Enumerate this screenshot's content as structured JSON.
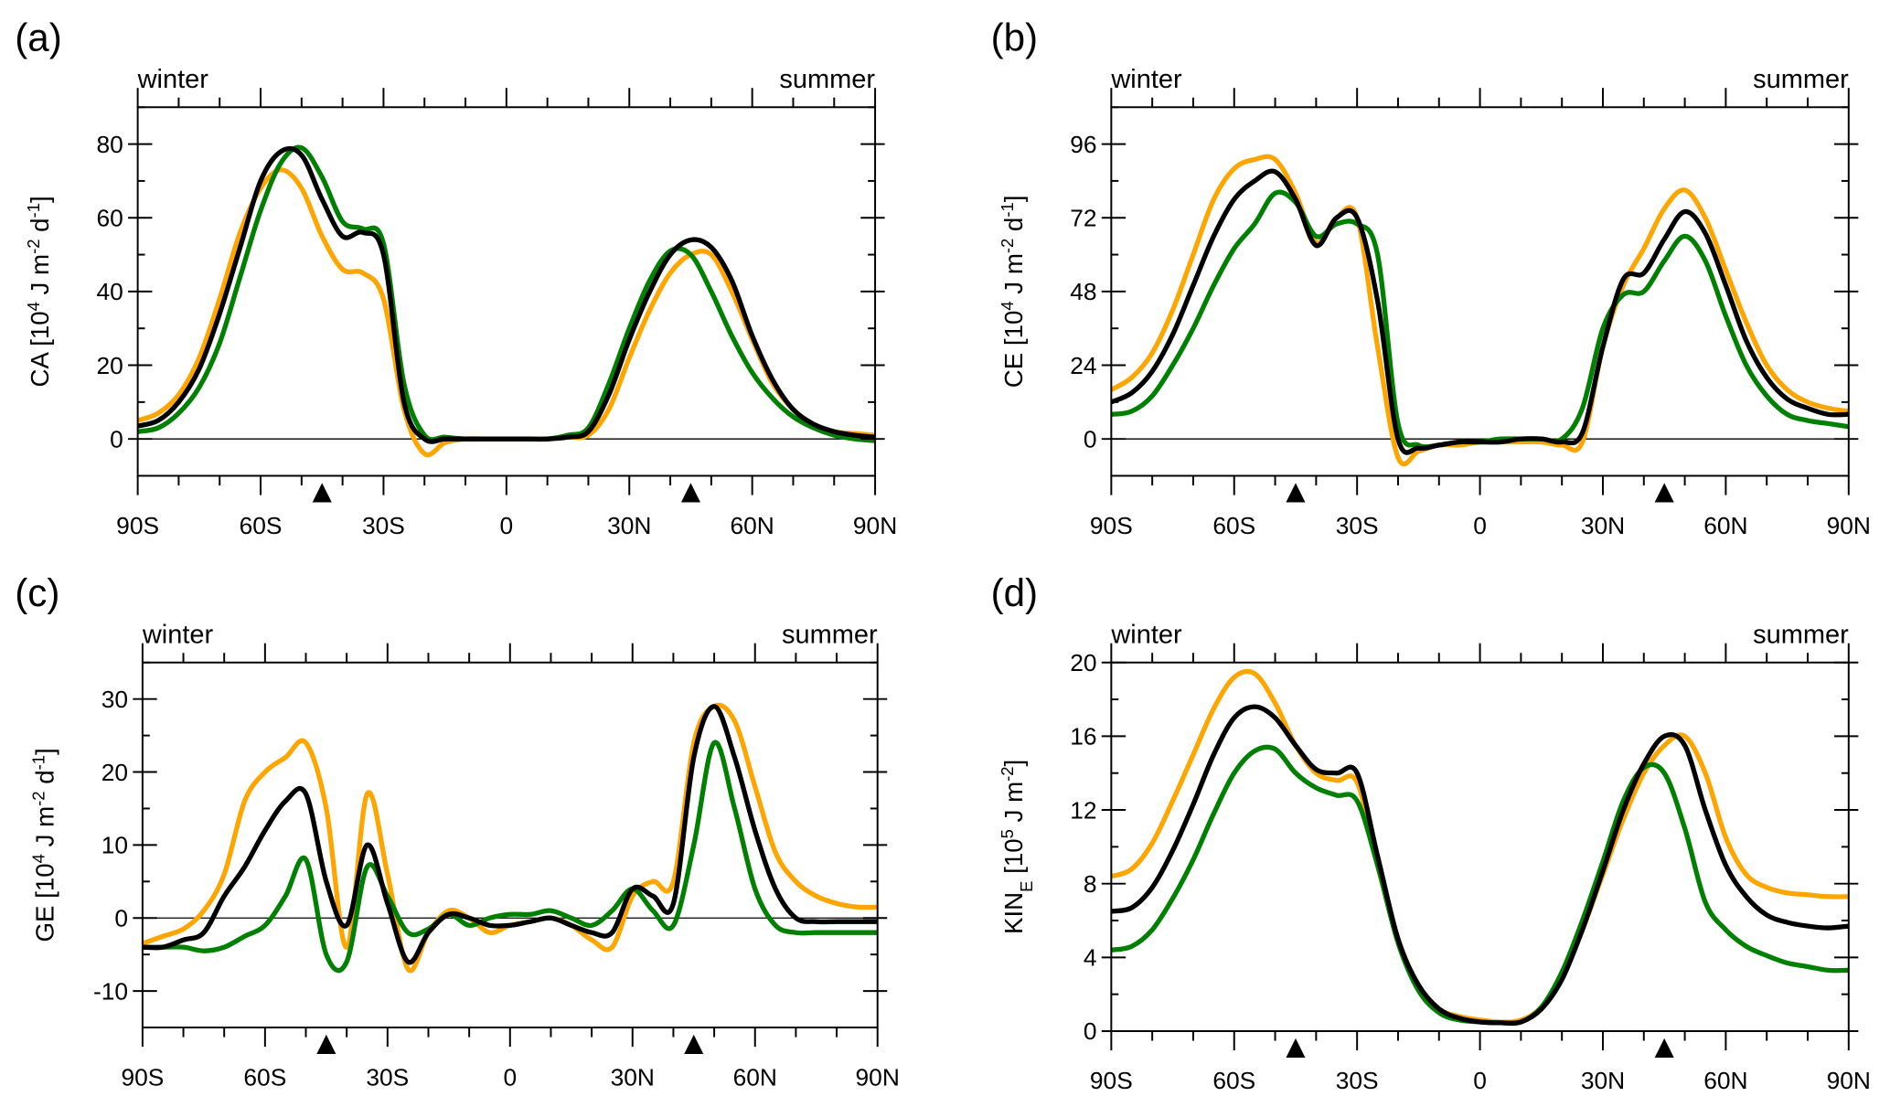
{
  "chart_data": [
    {
      "type": "line",
      "panel_label": "(a)",
      "top_left_label": "winter",
      "top_right_label": "summer",
      "ylabel": [
        {
          "t": "CA [10"
        },
        {
          "t": "4",
          "s": "sup"
        },
        {
          "t": " J m"
        },
        {
          "t": "-2",
          "s": "sup"
        },
        {
          "t": " d"
        },
        {
          "t": "-1",
          "s": "sup"
        },
        {
          "t": "]"
        }
      ],
      "xlim": [
        -90,
        90
      ],
      "ylim": [
        -10,
        90
      ],
      "yticks": [
        0,
        20,
        40,
        60,
        80
      ],
      "yticklabels": [
        "0",
        "20",
        "40",
        "60",
        "80"
      ],
      "yminor": 10,
      "xticks": [
        -90,
        -60,
        -30,
        0,
        30,
        60,
        90
      ],
      "xticklabels": [
        "90S",
        "60S",
        "30S",
        "0",
        "30N",
        "60N",
        "90N"
      ],
      "markers": [
        -45,
        45
      ],
      "zero_line": true,
      "x": [
        -90,
        -85,
        -80,
        -75,
        -70,
        -65,
        -60,
        -55,
        -50,
        -45,
        -40,
        -35,
        -30,
        -25,
        -20,
        -15,
        -10,
        -5,
        0,
        5,
        10,
        15,
        20,
        25,
        30,
        35,
        40,
        45,
        50,
        55,
        60,
        65,
        70,
        75,
        80,
        85,
        90
      ],
      "series": [
        {
          "name": "orange",
          "color": "#FFA500",
          "values": [
            5,
            7,
            12,
            22,
            38,
            56,
            68,
            73,
            68,
            55,
            46,
            45,
            38,
            8,
            -4,
            -1,
            0,
            0,
            0,
            0,
            0,
            0.5,
            1,
            8,
            22,
            35,
            45,
            50,
            50,
            40,
            27,
            15,
            8,
            4,
            2,
            1.5,
            1
          ]
        },
        {
          "name": "green",
          "color": "#008000",
          "values": [
            2,
            3,
            7,
            14,
            26,
            44,
            62,
            75,
            79,
            71,
            59,
            57,
            53,
            15,
            1,
            0.5,
            0,
            0,
            0,
            0,
            0,
            1,
            3,
            15,
            30,
            43,
            51,
            50,
            40,
            28,
            18,
            11,
            6,
            3,
            1,
            0,
            -0.5
          ]
        },
        {
          "name": "black",
          "color": "#000000",
          "values": [
            3.5,
            5,
            10,
            19,
            34,
            52,
            70,
            78,
            77,
            65,
            55,
            56,
            50,
            10,
            0,
            0,
            0,
            0,
            0,
            0,
            0,
            0.5,
            2,
            12,
            27,
            40,
            50,
            54,
            52,
            43,
            28,
            16,
            8,
            4,
            2,
            1,
            0.5
          ]
        }
      ]
    },
    {
      "type": "line",
      "panel_label": "(b)",
      "top_left_label": "winter",
      "top_right_label": "summer",
      "ylabel": [
        {
          "t": "CE [10"
        },
        {
          "t": "4",
          "s": "sup"
        },
        {
          "t": " J m"
        },
        {
          "t": "-2",
          "s": "sup"
        },
        {
          "t": " d"
        },
        {
          "t": "-1",
          "s": "sup"
        },
        {
          "t": "]"
        }
      ],
      "xlim": [
        -90,
        90
      ],
      "ylim": [
        -12,
        108
      ],
      "yticks": [
        0,
        24,
        48,
        72,
        96
      ],
      "yticklabels": [
        "0",
        "24",
        "48",
        "72",
        "96"
      ],
      "yminor": 12,
      "xticks": [
        -90,
        -60,
        -30,
        0,
        30,
        60,
        90
      ],
      "xticklabels": [
        "90S",
        "60S",
        "30S",
        "0",
        "30N",
        "60N",
        "90N"
      ],
      "markers": [
        -45,
        45
      ],
      "zero_line": true,
      "x": [
        -90,
        -85,
        -80,
        -75,
        -70,
        -65,
        -60,
        -55,
        -50,
        -45,
        -40,
        -35,
        -30,
        -25,
        -20,
        -15,
        -10,
        -5,
        0,
        5,
        10,
        15,
        20,
        25,
        30,
        35,
        40,
        45,
        50,
        55,
        60,
        65,
        70,
        75,
        80,
        85,
        90
      ],
      "series": [
        {
          "name": "orange",
          "color": "#FFA500",
          "values": [
            16,
            20,
            28,
            42,
            60,
            78,
            88,
            91,
            91,
            80,
            64,
            72,
            72,
            30,
            -6,
            -4,
            -2,
            -2,
            -1,
            -1,
            -1,
            -1,
            -2,
            -1,
            30,
            50,
            62,
            75,
            81,
            72,
            55,
            38,
            24,
            16,
            12,
            10,
            9
          ]
        },
        {
          "name": "green",
          "color": "#008000",
          "values": [
            8,
            9,
            14,
            24,
            36,
            50,
            62,
            70,
            80,
            77,
            66,
            70,
            70,
            60,
            5,
            -2,
            -2,
            -1,
            -1,
            0,
            0,
            0,
            0,
            10,
            36,
            47,
            48,
            58,
            66,
            58,
            40,
            24,
            14,
            8,
            6,
            5,
            4
          ]
        },
        {
          "name": "black",
          "color": "#000000",
          "values": [
            12,
            15,
            22,
            34,
            50,
            66,
            78,
            84,
            87,
            78,
            63,
            72,
            72,
            45,
            0,
            -3,
            -2,
            -1,
            -1,
            -1,
            0,
            0,
            -1,
            2,
            30,
            52,
            54,
            65,
            74,
            67,
            50,
            32,
            20,
            13,
            10,
            8,
            8
          ]
        }
      ]
    },
    {
      "type": "line",
      "panel_label": "(c)",
      "top_left_label": "winter",
      "top_right_label": "summer",
      "ylabel": [
        {
          "t": "GE [10"
        },
        {
          "t": "4",
          "s": "sup"
        },
        {
          "t": " J m"
        },
        {
          "t": "-2",
          "s": "sup"
        },
        {
          "t": " d"
        },
        {
          "t": "-1",
          "s": "sup"
        },
        {
          "t": "]"
        }
      ],
      "xlim": [
        -90,
        90
      ],
      "ylim": [
        -15,
        35
      ],
      "yticks": [
        -10,
        0,
        10,
        20,
        30
      ],
      "yticklabels": [
        "-10",
        "0",
        "10",
        "20",
        "30"
      ],
      "yminor": 5,
      "xticks": [
        -90,
        -60,
        -30,
        0,
        30,
        60,
        90
      ],
      "xticklabels": [
        "90S",
        "60S",
        "30S",
        "0",
        "30N",
        "60N",
        "90N"
      ],
      "markers": [
        -45,
        45
      ],
      "zero_line": true,
      "x": [
        -90,
        -85,
        -80,
        -75,
        -70,
        -65,
        -60,
        -55,
        -50,
        -45,
        -40,
        -35,
        -30,
        -25,
        -20,
        -15,
        -10,
        -5,
        0,
        5,
        10,
        15,
        20,
        25,
        30,
        35,
        40,
        45,
        50,
        55,
        60,
        65,
        70,
        75,
        80,
        85,
        90
      ],
      "series": [
        {
          "name": "orange",
          "color": "#FFA500",
          "values": [
            -3.5,
            -2.5,
            -1.5,
            1,
            6,
            16,
            20,
            22,
            24,
            15,
            -4,
            17,
            6,
            -7,
            -2,
            1,
            0,
            -2,
            -1,
            -0.5,
            0,
            -1,
            -3,
            -4,
            3,
            5,
            5,
            24,
            29,
            27,
            18,
            9,
            5,
            3,
            2,
            1.5,
            1.5
          ]
        },
        {
          "name": "green",
          "color": "#008000",
          "values": [
            -4,
            -4,
            -4,
            -4.5,
            -4,
            -2.5,
            -1,
            3,
            8,
            -5,
            -6,
            7,
            3,
            -2,
            -1.5,
            0.5,
            -1,
            0,
            0.5,
            0.5,
            1,
            0,
            -1,
            1,
            4,
            1,
            -1,
            10,
            24,
            15,
            4,
            -1,
            -2,
            -2,
            -2,
            -2,
            -2
          ]
        },
        {
          "name": "black",
          "color": "#000000",
          "values": [
            -4,
            -4,
            -3,
            -2,
            3,
            7,
            12,
            16,
            17,
            5,
            -1,
            10,
            2,
            -6,
            -2,
            0.5,
            0,
            -1,
            -1,
            -0.5,
            0,
            -1,
            -2,
            -2,
            4,
            3,
            2,
            22,
            29,
            22,
            12,
            4,
            0,
            -0.5,
            -0.5,
            -0.5,
            -0.5
          ]
        }
      ]
    },
    {
      "type": "line",
      "panel_label": "(d)",
      "top_left_label": "winter",
      "top_right_label": "summer",
      "ylabel": [
        {
          "t": "KIN"
        },
        {
          "t": "E",
          "s": "sub"
        },
        {
          "t": " [10"
        },
        {
          "t": "5",
          "s": "sup"
        },
        {
          "t": " J m"
        },
        {
          "t": "-2",
          "s": "sup"
        },
        {
          "t": "]"
        }
      ],
      "xlim": [
        -90,
        90
      ],
      "ylim": [
        0,
        20
      ],
      "yticks": [
        0,
        4,
        8,
        12,
        16,
        20
      ],
      "yticklabels": [
        "0",
        "4",
        "8",
        "12",
        "16",
        "20"
      ],
      "yminor": 2,
      "xticks": [
        -90,
        -60,
        -30,
        0,
        30,
        60,
        90
      ],
      "xticklabels": [
        "90S",
        "60S",
        "30S",
        "0",
        "30N",
        "60N",
        "90N"
      ],
      "markers": [
        -45,
        45
      ],
      "zero_line": false,
      "x": [
        -90,
        -85,
        -80,
        -75,
        -70,
        -65,
        -60,
        -55,
        -50,
        -45,
        -40,
        -35,
        -30,
        -25,
        -20,
        -15,
        -10,
        -5,
        0,
        5,
        10,
        15,
        20,
        25,
        30,
        35,
        40,
        45,
        50,
        55,
        60,
        65,
        70,
        75,
        80,
        85,
        90
      ],
      "series": [
        {
          "name": "orange",
          "color": "#FFA500",
          "values": [
            8.4,
            8.8,
            10.2,
            12.5,
            15,
            17.5,
            19.2,
            19.4,
            17.8,
            15.5,
            14,
            13.6,
            13.5,
            9,
            5,
            2.5,
            1.2,
            0.8,
            0.6,
            0.5,
            0.6,
            1.3,
            3,
            5.5,
            8.5,
            11.5,
            14,
            15.5,
            16,
            14,
            10.5,
            8.5,
            7.8,
            7.5,
            7.4,
            7.3,
            7.3
          ]
        },
        {
          "name": "green",
          "color": "#008000",
          "values": [
            4.4,
            4.6,
            5.5,
            7.2,
            9.3,
            11.8,
            14,
            15.2,
            15.3,
            14,
            13.2,
            12.8,
            12.5,
            9,
            4.8,
            2.2,
            1,
            0.6,
            0.5,
            0.45,
            0.5,
            1.3,
            3.2,
            6,
            9.2,
            12.5,
            14.3,
            14,
            11,
            7,
            5.5,
            4.6,
            4.1,
            3.7,
            3.5,
            3.3,
            3.3
          ]
        },
        {
          "name": "black",
          "color": "#000000",
          "values": [
            6.5,
            6.7,
            7.8,
            9.8,
            12.3,
            15,
            17,
            17.6,
            17,
            15.5,
            14.2,
            14,
            14,
            9.5,
            5,
            2.5,
            1.2,
            0.7,
            0.5,
            0.45,
            0.5,
            1.2,
            2.8,
            5.5,
            8.7,
            12,
            14.5,
            16,
            15.5,
            12,
            9,
            7.3,
            6.3,
            5.9,
            5.7,
            5.6,
            5.7
          ]
        }
      ]
    }
  ]
}
